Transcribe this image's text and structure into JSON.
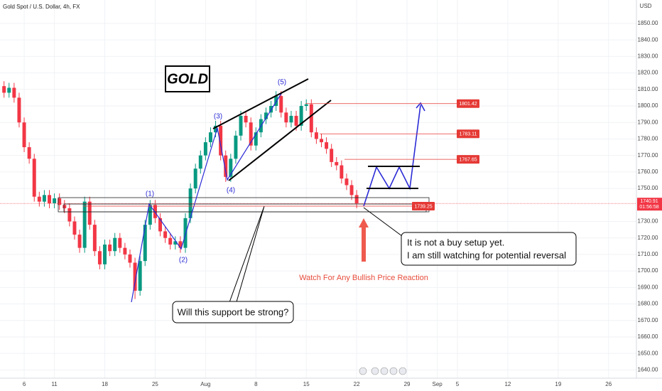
{
  "chart_data": {
    "type": "candlestick",
    "title": "Gold Spot / U.S. Dollar, 4h, FX",
    "currency": "USD",
    "label_box": "GOLD",
    "wave_labels": [
      "(1)",
      "(2)",
      "(3)",
      "(4)",
      "(5)"
    ],
    "callout_right": [
      "It is not a buy setup yet.",
      "I am still watching for potential reversal"
    ],
    "arrow_note": "Watch For Any Bullish Price Reaction",
    "callout_left": "Will this support be strong?",
    "levels": [
      1801.42,
      1783.11,
      1767.65,
      1739.25
    ],
    "last_price": 1740.91,
    "countdown": "01:56:58",
    "up_color": "#089981",
    "down_color": "#f23645",
    "grid": true,
    "xlim": [
      -14.4,
      364.6
    ],
    "ylim": [
      1635,
      1864.2
    ],
    "xticks": [
      {
        "value": 0,
        "label": "6"
      },
      {
        "value": 18,
        "label": "11"
      },
      {
        "value": 48,
        "label": "18"
      },
      {
        "value": 78,
        "label": "25"
      },
      {
        "value": 108,
        "label": "Aug"
      },
      {
        "value": 138,
        "label": "8"
      },
      {
        "value": 168,
        "label": "15"
      },
      {
        "value": 198,
        "label": "22"
      },
      {
        "value": 228,
        "label": "29"
      },
      {
        "value": 246,
        "label": "Sep"
      },
      {
        "value": 258,
        "label": "5"
      },
      {
        "value": 288,
        "label": "12"
      },
      {
        "value": 318,
        "label": "19"
      },
      {
        "value": 348,
        "label": "26"
      }
    ],
    "yticks": [
      {
        "value": 1640,
        "label": "1640.00"
      },
      {
        "value": 1650,
        "label": "1650.00"
      },
      {
        "value": 1660,
        "label": "1660.00"
      },
      {
        "value": 1670,
        "label": "1670.00"
      },
      {
        "value": 1680,
        "label": "1680.00"
      },
      {
        "value": 1690,
        "label": "1690.00"
      },
      {
        "value": 1700,
        "label": "1700.00"
      },
      {
        "value": 1710,
        "label": "1710.00"
      },
      {
        "value": 1720,
        "label": "1720.00"
      },
      {
        "value": 1730,
        "label": "1730.00"
      },
      {
        "value": 1750,
        "label": "1750.00"
      },
      {
        "value": 1760,
        "label": "1760.00"
      },
      {
        "value": 1770,
        "label": "1770.00"
      },
      {
        "value": 1780,
        "label": "1780.00"
      },
      {
        "value": 1790,
        "label": "1790.00"
      },
      {
        "value": 1800,
        "label": "1800.00"
      },
      {
        "value": 1810,
        "label": "1810.00"
      },
      {
        "value": 1820,
        "label": "1820.00"
      },
      {
        "value": 1830,
        "label": "1830.00"
      },
      {
        "value": 1840,
        "label": "1840.00"
      },
      {
        "value": 1850,
        "label": "1850.00"
      }
    ],
    "x": [
      -12,
      -9,
      -6,
      -3,
      0,
      3,
      6,
      9,
      12,
      15,
      18,
      21,
      24,
      27,
      30,
      33,
      36,
      39,
      42,
      45,
      48,
      51,
      54,
      57,
      60,
      63,
      66,
      69,
      72,
      75,
      78,
      81,
      84,
      87,
      90,
      93,
      96,
      99,
      102,
      105,
      108,
      111,
      114,
      117,
      120,
      123,
      126,
      129,
      132,
      135,
      138,
      141,
      144,
      147,
      150,
      153,
      156,
      159,
      162,
      165,
      168,
      171,
      174,
      177,
      180,
      183,
      186,
      189,
      192,
      195,
      198
    ],
    "open": [
      1812,
      1808,
      1811,
      1805,
      1790,
      1775,
      1768,
      1745,
      1742,
      1746,
      1741,
      1744,
      1740,
      1738,
      1730,
      1722,
      1714,
      1742,
      1728,
      1712,
      1704,
      1716,
      1712,
      1720,
      1714,
      1710,
      1705,
      1688,
      1706,
      1728,
      1740,
      1732,
      1724,
      1720,
      1716,
      1718,
      1714,
      1732,
      1750,
      1762,
      1770,
      1778,
      1784,
      1788,
      1770,
      1757,
      1768,
      1782,
      1794,
      1790,
      1776,
      1784,
      1792,
      1796,
      1800,
      1806,
      1796,
      1790,
      1794,
      1788,
      1800,
      1801,
      1784,
      1780,
      1778,
      1774,
      1766,
      1764,
      1756,
      1752,
      1746
    ],
    "high": [
      1815,
      1814,
      1814,
      1808,
      1793,
      1778,
      1771,
      1748,
      1749,
      1749,
      1747,
      1747,
      1743,
      1741,
      1733,
      1725,
      1745,
      1745,
      1731,
      1715,
      1719,
      1719,
      1723,
      1723,
      1717,
      1713,
      1708,
      1709,
      1731,
      1743,
      1743,
      1735,
      1727,
      1723,
      1721,
      1721,
      1735,
      1753,
      1765,
      1773,
      1781,
      1787,
      1791,
      1791,
      1773,
      1771,
      1785,
      1797,
      1797,
      1793,
      1787,
      1795,
      1799,
      1803,
      1809,
      1809,
      1799,
      1797,
      1797,
      1803,
      1804,
      1804,
      1787,
      1783,
      1781,
      1777,
      1769,
      1767,
      1759,
      1755,
      1749
    ],
    "low": [
      1805,
      1805,
      1802,
      1787,
      1772,
      1765,
      1742,
      1739,
      1739,
      1738,
      1738,
      1737,
      1735,
      1727,
      1719,
      1711,
      1711,
      1725,
      1709,
      1701,
      1701,
      1709,
      1709,
      1711,
      1707,
      1702,
      1683,
      1685,
      1703,
      1725,
      1729,
      1721,
      1717,
      1713,
      1713,
      1711,
      1711,
      1729,
      1747,
      1759,
      1767,
      1775,
      1781,
      1767,
      1754,
      1754,
      1765,
      1779,
      1787,
      1773,
      1773,
      1781,
      1789,
      1793,
      1797,
      1793,
      1787,
      1787,
      1785,
      1785,
      1797,
      1781,
      1777,
      1775,
      1771,
      1763,
      1761,
      1753,
      1749,
      1743,
      1738
    ],
    "close": [
      1808,
      1811,
      1805,
      1790,
      1775,
      1768,
      1745,
      1742,
      1746,
      1741,
      1744,
      1740,
      1738,
      1730,
      1722,
      1714,
      1742,
      1728,
      1712,
      1704,
      1716,
      1712,
      1720,
      1714,
      1710,
      1705,
      1688,
      1706,
      1728,
      1740,
      1732,
      1724,
      1720,
      1716,
      1718,
      1714,
      1732,
      1750,
      1762,
      1770,
      1778,
      1784,
      1788,
      1770,
      1757,
      1768,
      1782,
      1794,
      1790,
      1776,
      1784,
      1792,
      1796,
      1800,
      1806,
      1796,
      1790,
      1794,
      1788,
      1800,
      1801,
      1784,
      1780,
      1778,
      1774,
      1766,
      1764,
      1756,
      1752,
      1746,
      1741
    ]
  }
}
